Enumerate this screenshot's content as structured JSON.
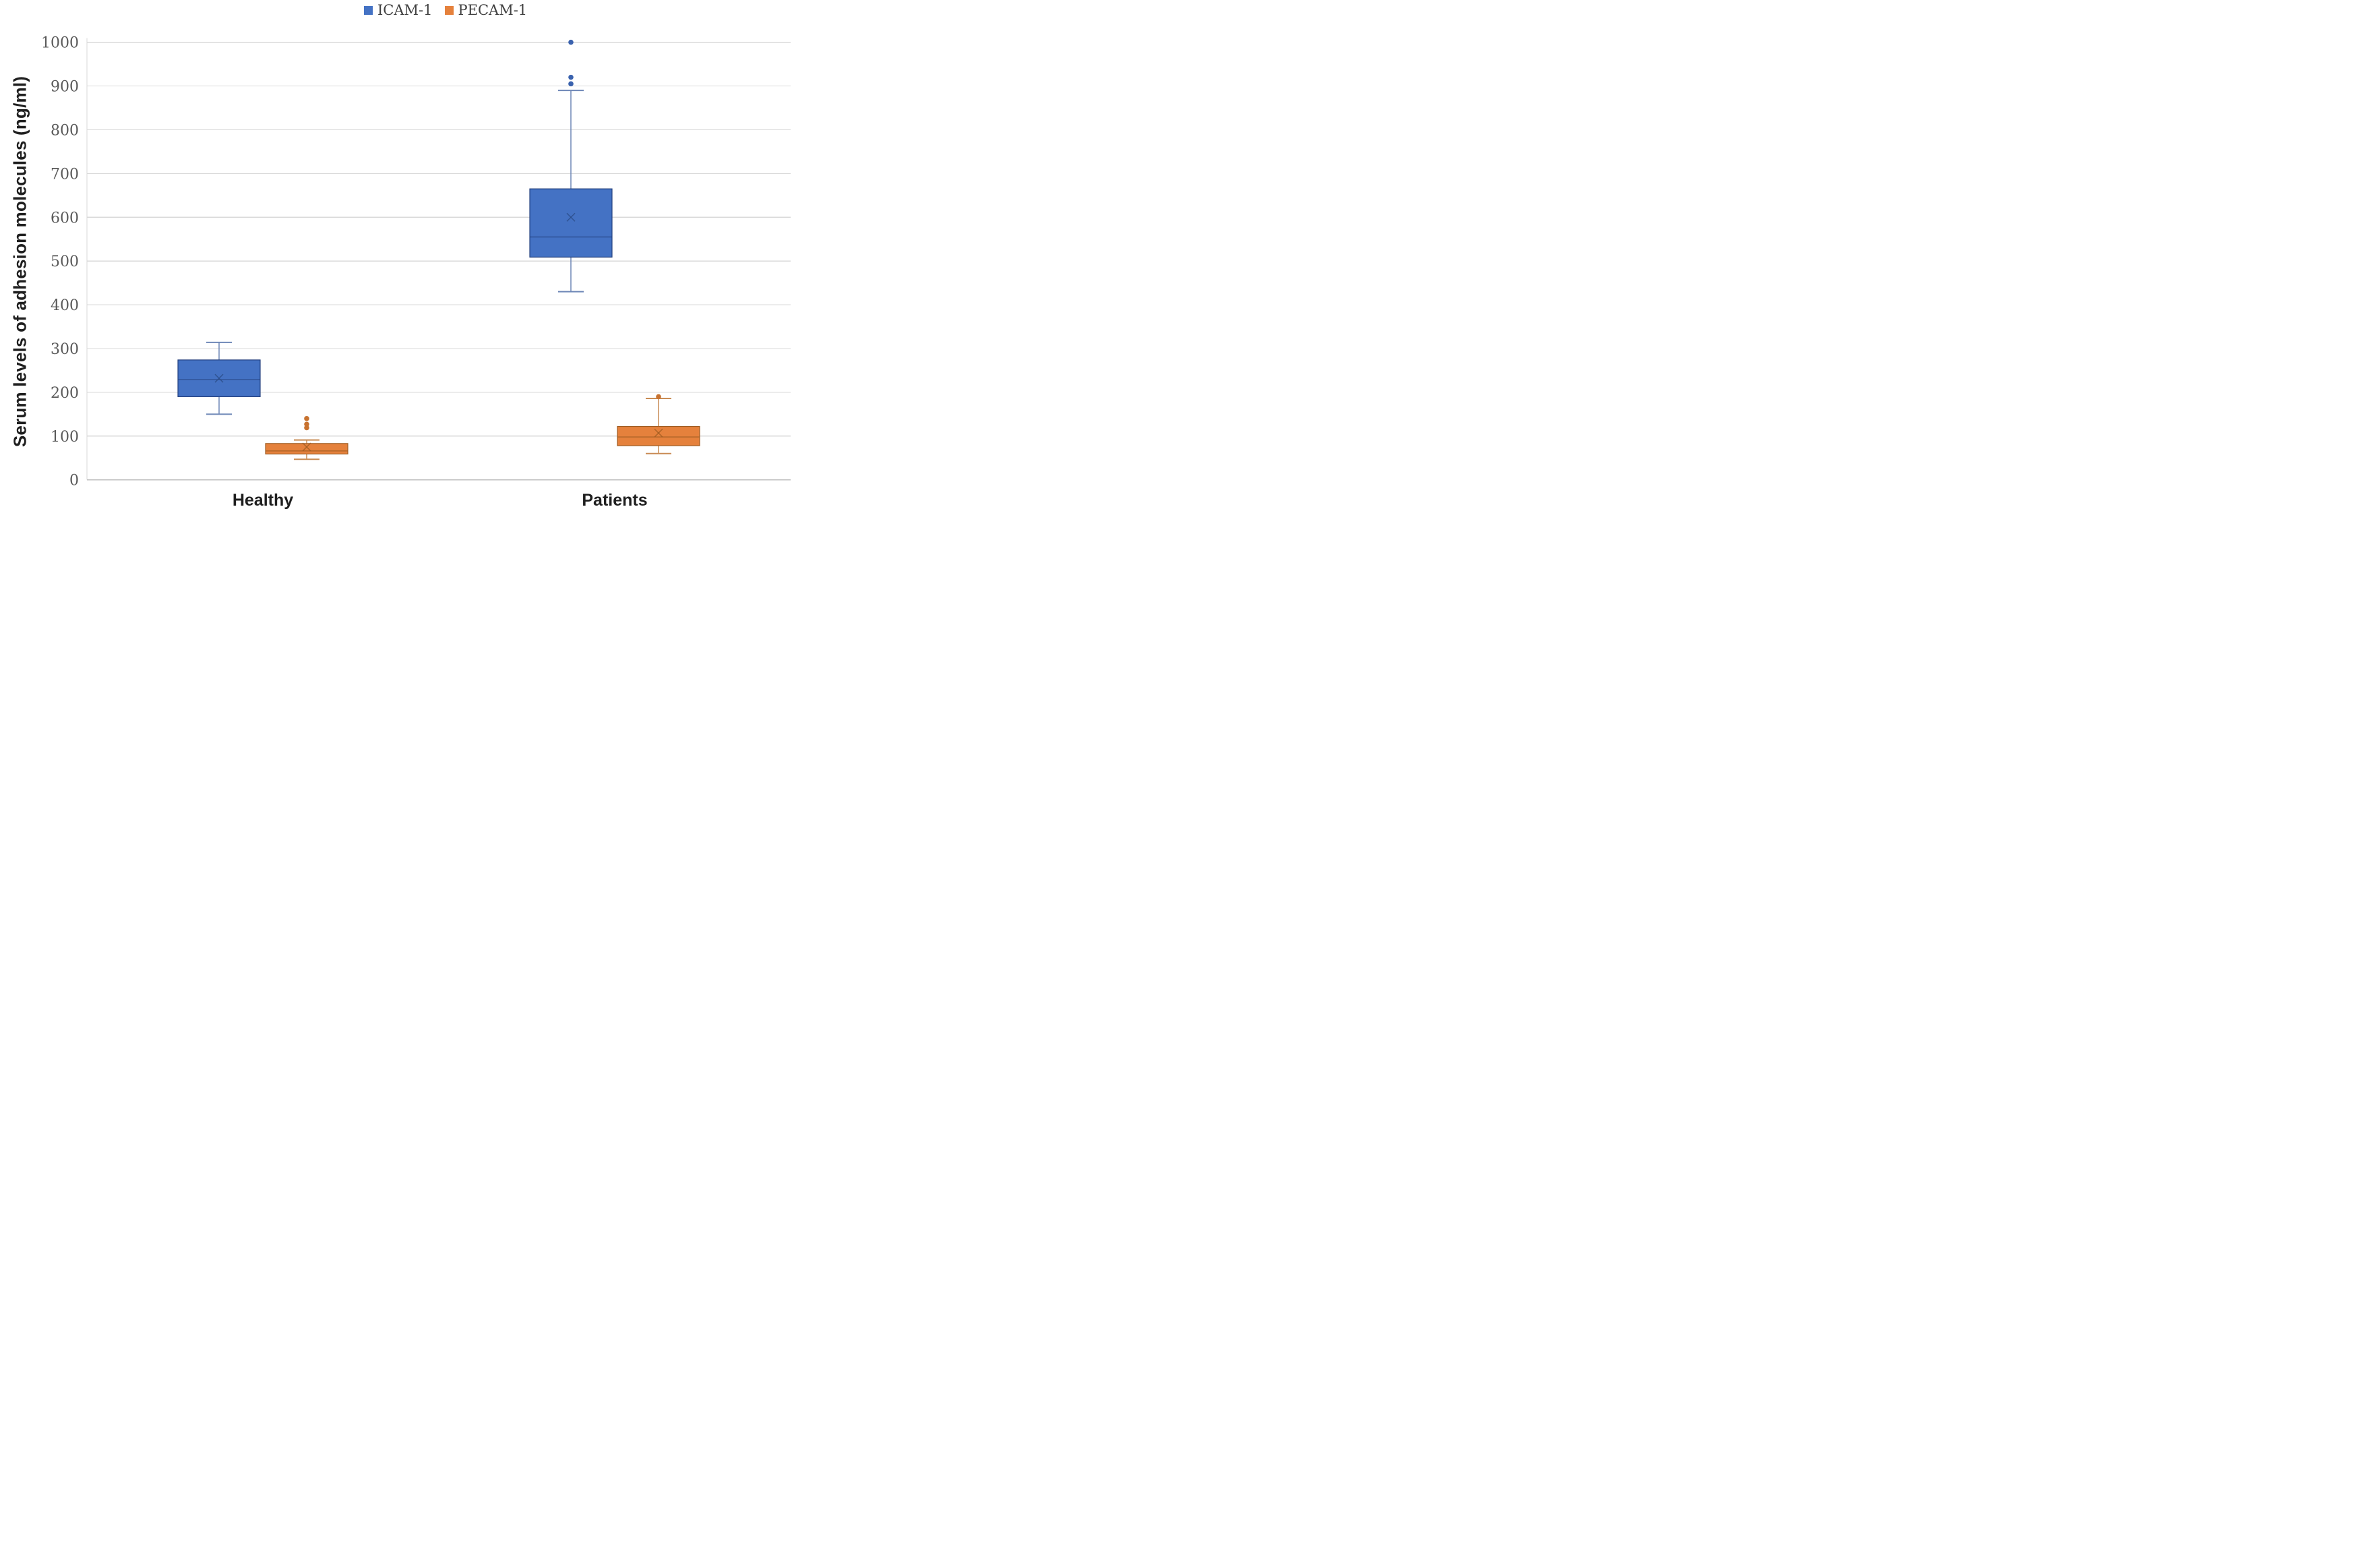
{
  "chart_data": {
    "type": "boxplot",
    "title": "",
    "ylabel": "Serum levels of adhesion molecules (ng/ml)",
    "xlabel": "",
    "categories": [
      "Healthy",
      "Patients"
    ],
    "legend_position": "top-center",
    "grid": true,
    "y_axis": {
      "min": 0,
      "max": 1000,
      "step": 100,
      "tick_labels": [
        "0",
        "100",
        "200",
        "300",
        "400",
        "500",
        "600",
        "700",
        "800",
        "900",
        "1000"
      ]
    },
    "legend": [
      {
        "label": "ICAM-1",
        "color": "#4472C4"
      },
      {
        "label": "PECAM-1",
        "color": "#E5813C"
      }
    ],
    "series": [
      {
        "name": "ICAM-1",
        "fill": "#4472C4",
        "border": "#24417E",
        "whisker": "#6E87B7",
        "mean_color": "#2B4B86",
        "outlier_color": "#3A62AE",
        "boxes": [
          {
            "category": "Healthy",
            "min": 150,
            "q1": 190,
            "median": 229,
            "mean": 232,
            "q3": 274,
            "max": 314,
            "outliers": []
          },
          {
            "category": "Patients",
            "min": 430,
            "q1": 509,
            "median": 555,
            "mean": 600,
            "q3": 665,
            "max": 890,
            "outliers": [
              905,
              920,
              1000
            ]
          }
        ]
      },
      {
        "name": "PECAM-1",
        "fill": "#E5813C",
        "border": "#9E5B21",
        "whisker": "#C98C55",
        "mean_color": "#9E5B21",
        "outlier_color": "#C8722F",
        "boxes": [
          {
            "category": "Healthy",
            "min": 47,
            "q1": 59,
            "median": 66,
            "mean": 75,
            "q3": 83,
            "max": 91,
            "outliers": [
              119,
              127,
              140
            ]
          },
          {
            "category": "Patients",
            "min": 60,
            "q1": 78,
            "median": 98,
            "mean": 107,
            "q3": 122,
            "max": 186,
            "outliers": [
              190
            ]
          }
        ]
      }
    ],
    "colors": {
      "grid": "#D9D9D9",
      "axis_line": "#BFBFBF",
      "tick_text": "#595959",
      "category_text": "#1F1F1F"
    }
  }
}
